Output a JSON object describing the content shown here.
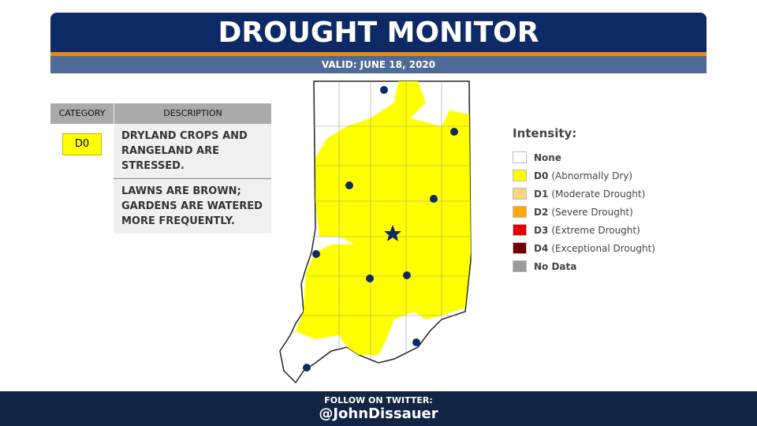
{
  "header": {
    "title": "DROUGHT MONITOR",
    "valid": "VALID: JUNE 18, 2020"
  },
  "table": {
    "headers": [
      "CATEGORY",
      "DESCRIPTION"
    ],
    "rows": [
      {
        "category": "D0",
        "descriptions": [
          "DRYLAND CROPS AND RANGELAND ARE STRESSED.",
          "LAWNS ARE BROWN; GARDENS ARE WATERED MORE FREQUENTLY."
        ]
      }
    ]
  },
  "legend": {
    "title": "Intensity:",
    "items": [
      {
        "label": "None",
        "color": "#ffffff"
      },
      {
        "code": "D0",
        "label": "(Abnormally Dry)",
        "color": "#ffff00"
      },
      {
        "code": "D1",
        "label": "(Moderate Drought)",
        "color": "#fcd37f"
      },
      {
        "code": "D2",
        "label": "(Severe Drought)",
        "color": "#ffaa00"
      },
      {
        "code": "D3",
        "label": "(Extreme Drought)",
        "color": "#e60000"
      },
      {
        "code": "D4",
        "label": "(Exceptional Drought)",
        "color": "#730000"
      },
      {
        "label": "No Data",
        "color": "#9b9b9b"
      }
    ]
  },
  "footer": {
    "line": "FOLLOW ON TWITTER:",
    "handle": "@JohnDissauer"
  }
}
